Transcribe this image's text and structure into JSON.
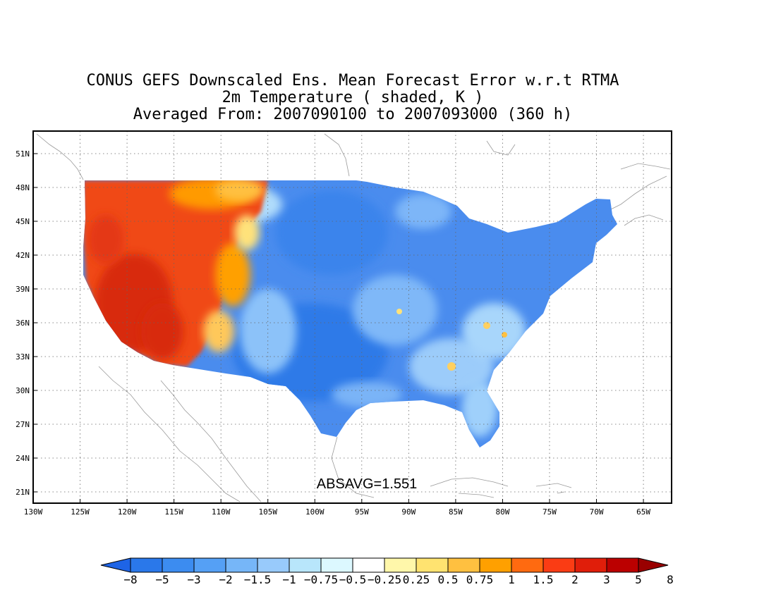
{
  "title": {
    "line1": "CONUS GEFS Downscaled Ens. Mean Forecast Error w.r.t RTMA",
    "line2": "2m Temperature ( shaded, K )",
    "line3": "Averaged From: 2007090100 to 2007093000 (360 h)"
  },
  "annotation": "ABSAVG=1.551",
  "map": {
    "lon_range": [
      -130,
      -62
    ],
    "lat_range": [
      20,
      53
    ],
    "x_ticks": [
      "130W",
      "125W",
      "120W",
      "115W",
      "110W",
      "105W",
      "100W",
      "95W",
      "90W",
      "85W",
      "80W",
      "75W",
      "70W",
      "65W"
    ],
    "x_tick_values": [
      -130,
      -125,
      -120,
      -115,
      -110,
      -105,
      -100,
      -95,
      -90,
      -85,
      -80,
      -75,
      -70,
      -65
    ],
    "y_ticks": [
      "21N",
      "24N",
      "27N",
      "30N",
      "33N",
      "36N",
      "39N",
      "42N",
      "45N",
      "48N",
      "51N"
    ],
    "y_tick_values": [
      21,
      24,
      27,
      30,
      33,
      36,
      39,
      42,
      45,
      48,
      51
    ],
    "grid": "dotted"
  },
  "colorbar": {
    "labels": [
      "-8",
      "-5",
      "-3",
      "-2",
      "-1.5",
      "-1",
      "-0.75",
      "-0.5",
      "-0.25",
      "0.25",
      "0.5",
      "0.75",
      "1",
      "1.5",
      "2",
      "3",
      "5",
      "8"
    ],
    "colors": [
      "#1e64e6",
      "#2a78ea",
      "#3c8cf0",
      "#55a0f5",
      "#76b6f8",
      "#98cafb",
      "#b8e6fb",
      "#dcf8ff",
      "#ffffff",
      "#fff7aa",
      "#ffe370",
      "#ffc040",
      "#ffa000",
      "#ff6a10",
      "#fa3c14",
      "#e01e0a",
      "#bb0000",
      "#990000"
    ]
  },
  "colors": {
    "west_warm": "#f04a12",
    "west_hot": "#d82a0a",
    "plains_cool": "#4f93ef",
    "east_cool": "#4a8cee",
    "light_blue": "#93c5fa",
    "orange": "#ff9a00",
    "yellow": "#ffd75a"
  }
}
